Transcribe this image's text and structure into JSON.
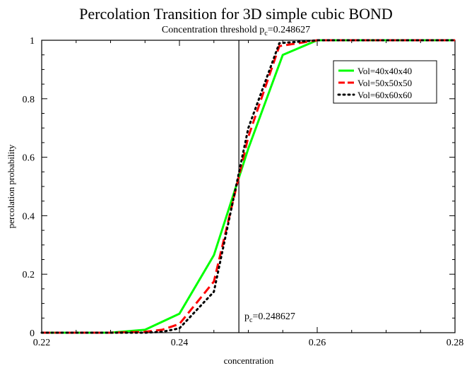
{
  "chart_data": {
    "type": "line",
    "title": "Percolation Transition for 3D simple cubic BOND",
    "subtitle": {
      "prefix": "Concentration threshold p",
      "sub": "c",
      "suffix": "=0.248627"
    },
    "xlabel": "concentration",
    "ylabel": "percolation probability",
    "xlim": [
      0.22,
      0.28
    ],
    "ylim": [
      0,
      1
    ],
    "x_ticks": [
      0.22,
      0.24,
      0.26,
      0.28
    ],
    "x_tick_labels": [
      "0.22",
      "0.24",
      "0.26",
      "0.28"
    ],
    "y_ticks": [
      0,
      0.2,
      0.4,
      0.6,
      0.8,
      1
    ],
    "y_tick_labels": [
      "0",
      "0.2",
      "0.4",
      "0.6",
      "0.8",
      "1"
    ],
    "grid": false,
    "legend_position": "top-right",
    "threshold": {
      "x": 0.248627,
      "prefix": "p",
      "sub": "c",
      "suffix": "=0.248627"
    },
    "series": [
      {
        "name": "Vol=40x40x40",
        "color": "#00ff00",
        "style": "solid",
        "x": [
          0.22,
          0.225,
          0.23,
          0.235,
          0.24,
          0.245,
          0.25,
          0.255,
          0.26,
          0.265,
          0.27,
          0.275,
          0.28
        ],
        "y": [
          0,
          0,
          0,
          0.01,
          0.065,
          0.265,
          0.63,
          0.95,
          1,
          1,
          1,
          1,
          1
        ]
      },
      {
        "name": "Vol=50x50x50",
        "color": "#ff0000",
        "style": "dashed",
        "x": [
          0.22,
          0.225,
          0.23,
          0.235,
          0.2375,
          0.24,
          0.245,
          0.25,
          0.2545,
          0.26,
          0.265,
          0.27,
          0.275,
          0.28
        ],
        "y": [
          0,
          0,
          0,
          0.003,
          0.01,
          0.03,
          0.175,
          0.67,
          0.98,
          1,
          1,
          1,
          1,
          1
        ]
      },
      {
        "name": "Vol=60x60x60",
        "color": "#000000",
        "style": "dotted",
        "x": [
          0.22,
          0.225,
          0.23,
          0.235,
          0.2375,
          0.24,
          0.245,
          0.25,
          0.2545,
          0.26,
          0.265,
          0.27,
          0.275,
          0.28
        ],
        "y": [
          0,
          0,
          0,
          0,
          0.003,
          0.015,
          0.14,
          0.7,
          0.99,
          1,
          1,
          1,
          1,
          1
        ]
      }
    ]
  }
}
